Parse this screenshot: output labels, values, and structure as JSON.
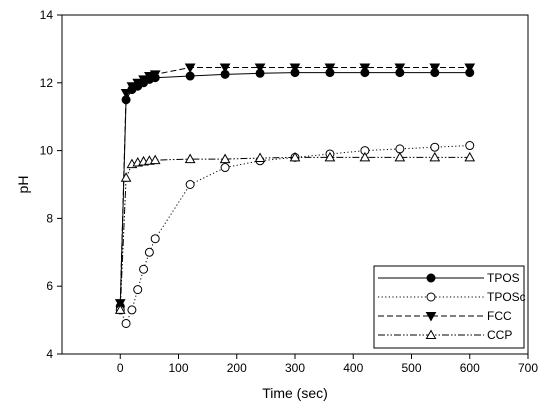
{
  "chart_data": {
    "type": "line",
    "xlabel": "Time (sec)",
    "ylabel": "pH",
    "xlim": [
      -100,
      700
    ],
    "ylim": [
      4,
      14
    ],
    "x_ticks": [
      0,
      100,
      200,
      300,
      400,
      500,
      600,
      700
    ],
    "y_ticks": [
      4,
      6,
      8,
      10,
      12,
      14
    ],
    "grid": false,
    "legend_position": "bottom-right",
    "series": [
      {
        "name": "TPOS",
        "marker": "filled-circle",
        "line_style": "solid",
        "x": [
          0,
          10,
          20,
          30,
          40,
          50,
          60,
          120,
          180,
          240,
          300,
          360,
          420,
          480,
          540,
          600
        ],
        "y": [
          5.4,
          11.5,
          11.8,
          11.9,
          12.0,
          12.1,
          12.15,
          12.2,
          12.25,
          12.28,
          12.3,
          12.3,
          12.3,
          12.3,
          12.3,
          12.3
        ]
      },
      {
        "name": "TPOSc",
        "marker": "open-circle",
        "line_style": "dotted",
        "x": [
          0,
          10,
          20,
          30,
          40,
          50,
          60,
          120,
          180,
          240,
          300,
          360,
          420,
          480,
          540,
          600
        ],
        "y": [
          5.3,
          4.9,
          5.3,
          5.9,
          6.5,
          7.0,
          7.4,
          9.0,
          9.5,
          9.7,
          9.8,
          9.9,
          10.0,
          10.05,
          10.1,
          10.15
        ]
      },
      {
        "name": "FCC",
        "marker": "filled-triangle-down",
        "line_style": "dashed",
        "x": [
          0,
          10,
          20,
          30,
          40,
          50,
          60,
          120,
          180,
          240,
          300,
          360,
          420,
          480,
          540,
          600
        ],
        "y": [
          5.5,
          11.7,
          11.9,
          12.0,
          12.1,
          12.2,
          12.25,
          12.45,
          12.45,
          12.45,
          12.45,
          12.45,
          12.45,
          12.45,
          12.45,
          12.45
        ]
      },
      {
        "name": "CCP",
        "marker": "open-triangle-up",
        "line_style": "dash-dot-dot",
        "x": [
          0,
          10,
          20,
          30,
          40,
          50,
          60,
          120,
          180,
          240,
          300,
          360,
          420,
          480,
          540,
          600
        ],
        "y": [
          5.3,
          9.2,
          9.6,
          9.65,
          9.68,
          9.7,
          9.72,
          9.75,
          9.75,
          9.78,
          9.8,
          9.8,
          9.8,
          9.8,
          9.8,
          9.8
        ]
      }
    ]
  }
}
